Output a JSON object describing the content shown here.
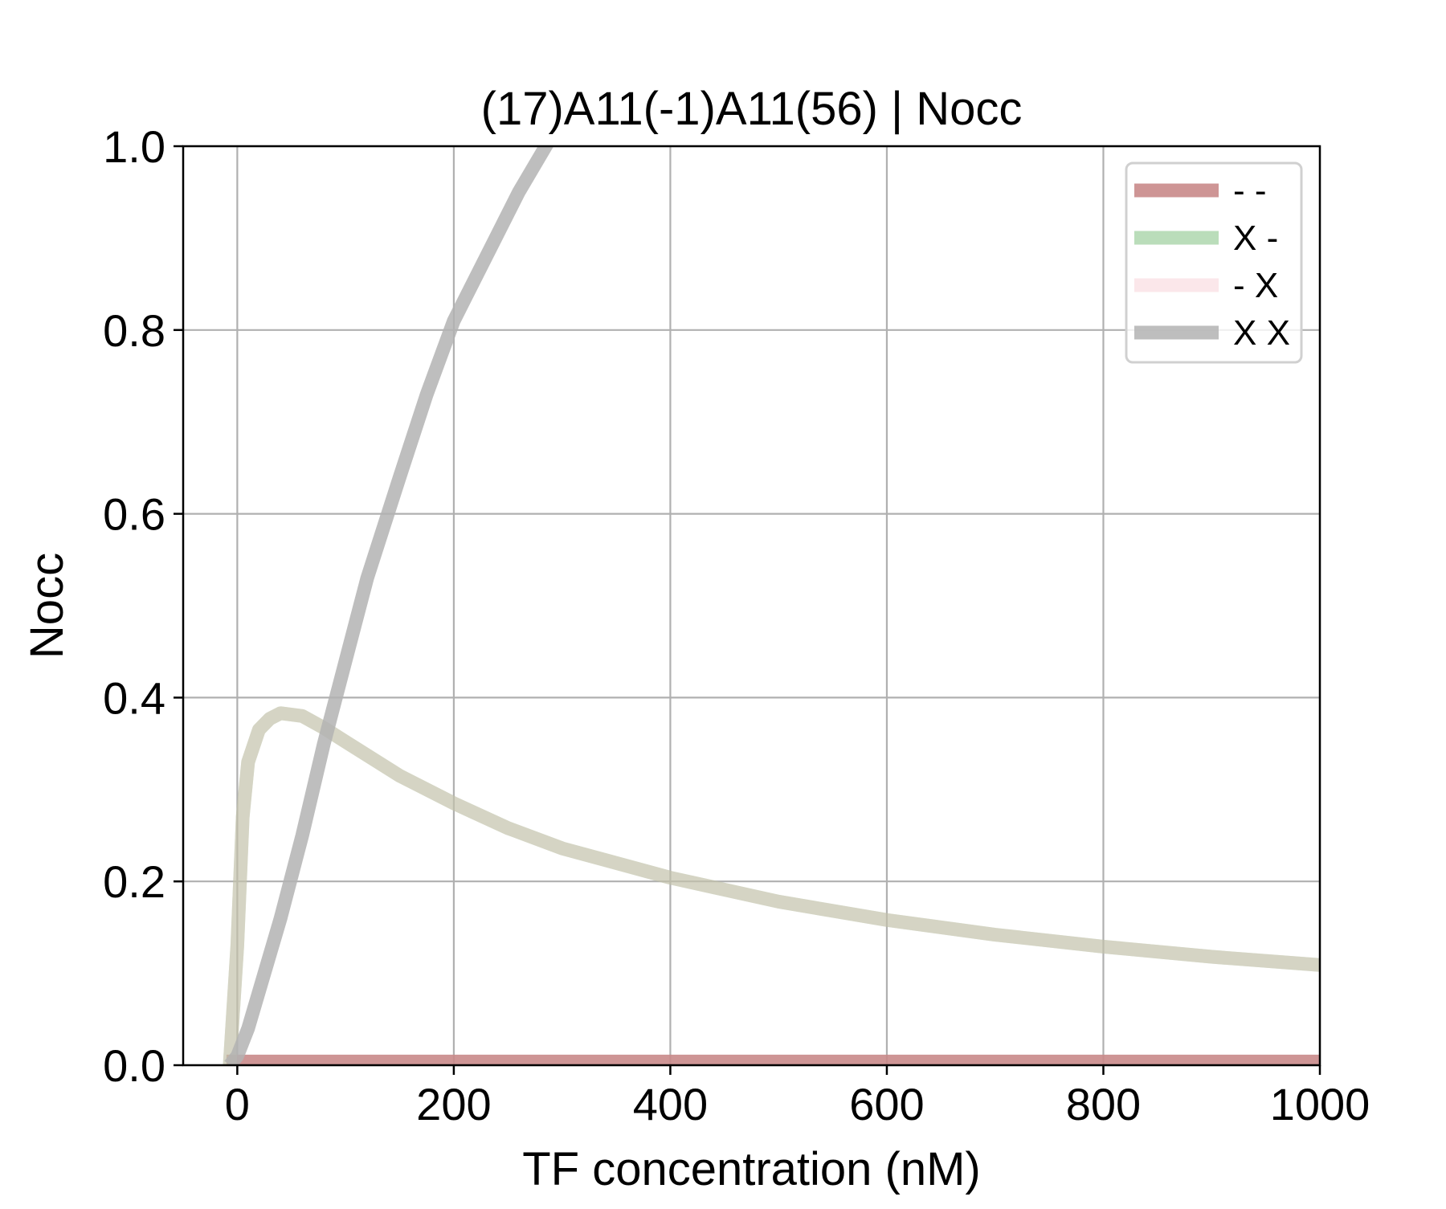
{
  "chart_data": {
    "type": "line",
    "title": "(17)A11(-1)A11(56) | Nocc",
    "xlabel": "TF concentration (nM)",
    "ylabel": "Nocc",
    "xlim": [
      -50,
      1000
    ],
    "ylim": [
      0,
      1.0
    ],
    "x_ticks": [
      0,
      200,
      400,
      600,
      800,
      1000
    ],
    "x_tick_labels": [
      "0",
      "200",
      "400",
      "600",
      "800",
      "1000"
    ],
    "y_ticks": [
      0.0,
      0.2,
      0.4,
      0.6,
      0.8,
      1.0
    ],
    "y_tick_labels": [
      "0.0",
      "0.2",
      "0.4",
      "0.6",
      "0.8",
      "1.0"
    ],
    "grid": true,
    "legend_position": "top-right",
    "series": [
      {
        "name": "- -",
        "color": "#c98a8a",
        "opacity": 0.9,
        "x": [
          -10,
          0,
          100,
          200,
          400,
          600,
          800,
          1000
        ],
        "y": [
          0.004,
          0.004,
          0.004,
          0.004,
          0.004,
          0.004,
          0.004,
          0.004
        ]
      },
      {
        "name": "X -",
        "color": "#66b366",
        "opacity": 0.45,
        "x": [
          -7,
          0,
          5,
          10,
          20,
          30,
          40,
          60,
          80,
          100,
          150,
          200,
          250,
          300,
          400,
          500,
          600,
          700,
          800,
          900,
          1000
        ],
        "y": [
          0.0,
          0.13,
          0.27,
          0.33,
          0.365,
          0.377,
          0.383,
          0.38,
          0.367,
          0.352,
          0.315,
          0.285,
          0.258,
          0.236,
          0.204,
          0.178,
          0.158,
          0.142,
          0.129,
          0.118,
          0.109
        ]
      },
      {
        "name": "- X",
        "color": "#f7c9d0",
        "opacity": 0.45,
        "x": [
          -7,
          0,
          5,
          10,
          20,
          30,
          40,
          60,
          80,
          100,
          150,
          200,
          250,
          300,
          400,
          500,
          600,
          700,
          800,
          900,
          1000
        ],
        "y": [
          0.0,
          0.13,
          0.27,
          0.33,
          0.365,
          0.377,
          0.383,
          0.38,
          0.367,
          0.352,
          0.315,
          0.285,
          0.258,
          0.236,
          0.204,
          0.178,
          0.158,
          0.142,
          0.129,
          0.118,
          0.109
        ]
      },
      {
        "name": "X X",
        "color": "#b3b3b3",
        "opacity": 0.85,
        "x": [
          -7,
          0,
          10,
          20,
          40,
          60,
          80,
          100,
          120,
          150,
          175,
          200,
          230,
          260,
          290
        ],
        "y": [
          0.0,
          0.01,
          0.04,
          0.08,
          0.16,
          0.25,
          0.35,
          0.44,
          0.53,
          0.64,
          0.73,
          0.81,
          0.88,
          0.95,
          1.01
        ]
      }
    ]
  }
}
